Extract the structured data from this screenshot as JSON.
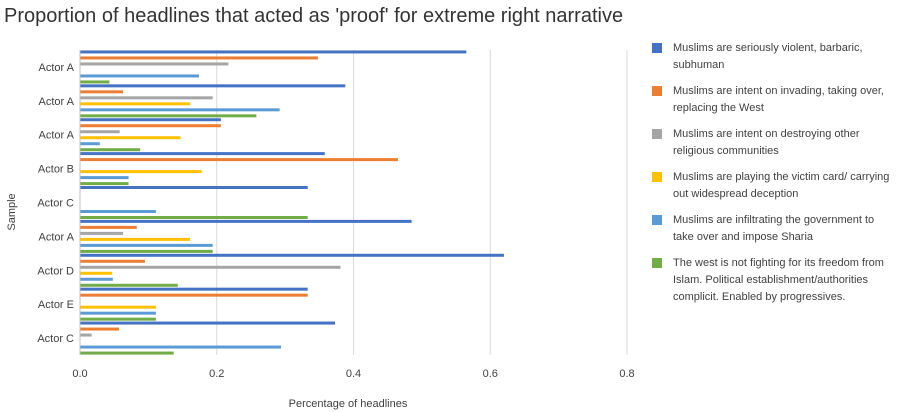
{
  "chart_data": {
    "type": "bar",
    "orientation": "horizontal",
    "title": "Proportion of headlines that acted as 'proof' for extreme right narrative",
    "xlabel": "Percentage of headlines",
    "ylabel": "Sample",
    "xlim": [
      0,
      0.8
    ],
    "xticks": [
      "0.0",
      "0.2",
      "0.4",
      "0.6",
      "0.8"
    ],
    "grid": true,
    "legend_position": "right",
    "categories": [
      "Actor A",
      "Actor A",
      "Actor A",
      "Actor B",
      "Actor C",
      "Actor A",
      "Actor D",
      "Actor E",
      "Actor C"
    ],
    "series": [
      {
        "name": "Muslims are seriously violent, barbaric, subhuman",
        "color": "#4472C4",
        "values": [
          0.565,
          0.388,
          0.206,
          0.358,
          0.333,
          0.485,
          0.62,
          0.333,
          0.373
        ]
      },
      {
        "name": "Muslims are intent on invading, taking over, replacing the West",
        "color": "#ED7D31",
        "values": [
          0.348,
          0.063,
          0.206,
          0.465,
          0.0,
          0.083,
          0.095,
          0.333,
          0.057
        ]
      },
      {
        "name": "Muslims are intent on destroying other religious communities",
        "color": "#A5A5A5",
        "values": [
          0.217,
          0.194,
          0.058,
          0.0,
          0.0,
          0.063,
          0.381,
          0.0,
          0.017
        ]
      },
      {
        "name": "Muslims are playing the victim card/ carrying out widespread deception",
        "color": "#FFC000",
        "values": [
          0.0,
          0.161,
          0.147,
          0.178,
          0.0,
          0.161,
          0.047,
          0.111,
          0.0
        ]
      },
      {
        "name": "Muslims are infiltrating the government to take over and impose Sharia",
        "color": "#5B9BD5",
        "values": [
          0.174,
          0.292,
          0.029,
          0.071,
          0.111,
          0.194,
          0.048,
          0.111,
          0.294
        ]
      },
      {
        "name": "The west is not fighting for its freedom from Islam. Political establishment/authorities complicit. Enabled by progressives.",
        "color": "#70AD47",
        "values": [
          0.043,
          0.258,
          0.088,
          0.071,
          0.333,
          0.194,
          0.143,
          0.111,
          0.137
        ]
      }
    ]
  }
}
